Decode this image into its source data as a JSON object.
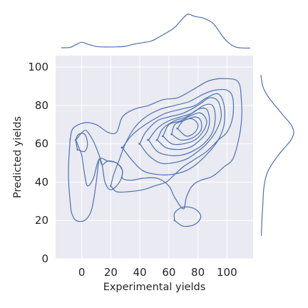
{
  "chart_data": {
    "type": "contour",
    "subtype": "joint-kde",
    "xlabel": "Experimental yields",
    "ylabel": "Predicted yields",
    "xlim": [
      -18,
      118
    ],
    "ylim": [
      0,
      106
    ],
    "xticks": [
      0,
      20,
      40,
      60,
      80,
      100
    ],
    "yticks": [
      0,
      20,
      40,
      60,
      80,
      100
    ],
    "grid": true,
    "background": "#eaeaf2",
    "line_color": "#4c72b0",
    "contours": [
      [
        [
          -8,
          62
        ],
        [
          -6,
          68
        ],
        [
          2,
          71
        ],
        [
          10,
          70
        ],
        [
          18,
          66
        ],
        [
          24,
          66
        ],
        [
          28,
          74
        ],
        [
          36,
          78
        ],
        [
          46,
          80
        ],
        [
          56,
          83
        ],
        [
          66,
          84
        ],
        [
          76,
          88
        ],
        [
          88,
          93
        ],
        [
          100,
          94
        ],
        [
          108,
          92
        ],
        [
          110,
          82
        ],
        [
          110,
          72
        ],
        [
          108,
          62
        ],
        [
          104,
          52
        ],
        [
          98,
          48
        ],
        [
          90,
          43
        ],
        [
          82,
          41
        ],
        [
          76,
          38
        ],
        [
          72,
          32
        ],
        [
          70,
          26
        ],
        [
          64,
          32
        ],
        [
          60,
          38
        ],
        [
          52,
          42
        ],
        [
          42,
          42
        ],
        [
          34,
          41
        ],
        [
          28,
          42
        ],
        [
          28,
          46
        ],
        [
          24,
          50
        ],
        [
          18,
          51
        ],
        [
          14,
          49
        ],
        [
          12,
          52
        ],
        [
          10,
          40
        ],
        [
          8,
          30
        ],
        [
          6,
          24
        ],
        [
          2,
          20
        ],
        [
          -4,
          20
        ],
        [
          -7,
          24
        ],
        [
          -8,
          30
        ],
        [
          -9,
          40
        ],
        [
          -9,
          50
        ],
        [
          -8,
          62
        ]
      ],
      [
        [
          -4,
          62
        ],
        [
          -2,
          58
        ],
        [
          0,
          54
        ],
        [
          2,
          44
        ],
        [
          4,
          38
        ],
        [
          8,
          42
        ],
        [
          12,
          52
        ],
        [
          18,
          51
        ],
        [
          24,
          50
        ],
        [
          28,
          46
        ],
        [
          26,
          40
        ],
        [
          20,
          36
        ],
        [
          16,
          40
        ],
        [
          14,
          49
        ],
        [
          10,
          58
        ],
        [
          6,
          64
        ],
        [
          2,
          67
        ],
        [
          -4,
          62
        ]
      ],
      [
        [
          20,
          38
        ],
        [
          24,
          35
        ],
        [
          32,
          35
        ],
        [
          42,
          36
        ],
        [
          50,
          38
        ],
        [
          58,
          40
        ],
        [
          64,
          44
        ],
        [
          70,
          48
        ],
        [
          78,
          52
        ],
        [
          86,
          56
        ],
        [
          94,
          62
        ],
        [
          100,
          66
        ],
        [
          104,
          74
        ],
        [
          104,
          84
        ],
        [
          100,
          88
        ],
        [
          92,
          88
        ],
        [
          84,
          86
        ],
        [
          74,
          82
        ],
        [
          64,
          80
        ],
        [
          54,
          78
        ],
        [
          44,
          74
        ],
        [
          36,
          68
        ],
        [
          30,
          60
        ],
        [
          26,
          52
        ],
        [
          22,
          44
        ],
        [
          20,
          38
        ]
      ],
      [
        [
          28,
          58
        ],
        [
          34,
          52
        ],
        [
          42,
          46
        ],
        [
          52,
          44
        ],
        [
          62,
          44
        ],
        [
          72,
          46
        ],
        [
          80,
          50
        ],
        [
          88,
          56
        ],
        [
          94,
          62
        ],
        [
          98,
          70
        ],
        [
          98,
          80
        ],
        [
          94,
          86
        ],
        [
          86,
          84
        ],
        [
          78,
          80
        ],
        [
          68,
          78
        ],
        [
          58,
          76
        ],
        [
          48,
          72
        ],
        [
          40,
          68
        ],
        [
          34,
          64
        ],
        [
          28,
          58
        ]
      ],
      [
        [
          40,
          60
        ],
        [
          46,
          54
        ],
        [
          54,
          50
        ],
        [
          62,
          50
        ],
        [
          72,
          52
        ],
        [
          80,
          56
        ],
        [
          86,
          60
        ],
        [
          92,
          66
        ],
        [
          96,
          74
        ],
        [
          94,
          82
        ],
        [
          88,
          84
        ],
        [
          80,
          80
        ],
        [
          70,
          76
        ],
        [
          60,
          74
        ],
        [
          52,
          72
        ],
        [
          44,
          66
        ],
        [
          40,
          60
        ]
      ],
      [
        [
          46,
          62
        ],
        [
          52,
          56
        ],
        [
          60,
          54
        ],
        [
          68,
          54
        ],
        [
          76,
          56
        ],
        [
          84,
          60
        ],
        [
          90,
          66
        ],
        [
          92,
          74
        ],
        [
          90,
          80
        ],
        [
          84,
          80
        ],
        [
          76,
          76
        ],
        [
          68,
          74
        ],
        [
          60,
          72
        ],
        [
          52,
          68
        ],
        [
          46,
          62
        ]
      ],
      [
        [
          52,
          62
        ],
        [
          58,
          58
        ],
        [
          66,
          57
        ],
        [
          74,
          58
        ],
        [
          80,
          61
        ],
        [
          86,
          66
        ],
        [
          88,
          72
        ],
        [
          86,
          78
        ],
        [
          80,
          78
        ],
        [
          72,
          74
        ],
        [
          64,
          72
        ],
        [
          56,
          68
        ],
        [
          52,
          62
        ]
      ],
      [
        [
          56,
          64
        ],
        [
          62,
          60
        ],
        [
          70,
          60
        ],
        [
          78,
          62
        ],
        [
          84,
          67
        ],
        [
          86,
          72
        ],
        [
          82,
          76
        ],
        [
          76,
          75
        ],
        [
          68,
          72
        ],
        [
          60,
          70
        ],
        [
          56,
          64
        ]
      ],
      [
        [
          62,
          65
        ],
        [
          68,
          62
        ],
        [
          76,
          63
        ],
        [
          82,
          67
        ],
        [
          82,
          72
        ],
        [
          78,
          74
        ],
        [
          70,
          72
        ],
        [
          64,
          70
        ],
        [
          62,
          65
        ]
      ],
      [
        [
          66,
          68
        ],
        [
          72,
          64
        ],
        [
          78,
          66
        ],
        [
          80,
          70
        ],
        [
          76,
          73
        ],
        [
          70,
          72
        ],
        [
          66,
          68
        ]
      ],
      [
        [
          -3,
          57
        ],
        [
          -4,
          62
        ],
        [
          -2,
          65
        ],
        [
          2,
          65
        ],
        [
          4,
          60
        ],
        [
          2,
          56
        ],
        [
          -3,
          57
        ]
      ],
      [
        [
          64,
          20
        ],
        [
          64,
          24
        ],
        [
          70,
          27
        ],
        [
          78,
          26
        ],
        [
          82,
          22
        ],
        [
          78,
          18
        ],
        [
          70,
          17
        ],
        [
          64,
          20
        ]
      ]
    ],
    "x_marginal": {
      "x": [
        -14,
        -8,
        -4,
        0,
        4,
        10,
        16,
        24,
        30,
        36,
        42,
        48,
        54,
        60,
        64,
        68,
        72,
        74,
        78,
        84,
        90,
        94,
        98,
        102,
        106,
        110,
        116
      ],
      "density": [
        0.08,
        0.1,
        0.25,
        0.38,
        0.28,
        0.15,
        0.12,
        0.13,
        0.16,
        0.28,
        0.36,
        0.45,
        0.7,
        0.98,
        1.2,
        1.55,
        1.88,
        1.92,
        1.8,
        1.7,
        1.45,
        1.05,
        0.6,
        0.3,
        0.12,
        0.07,
        0.06
      ]
    },
    "y_marginal": {
      "y": [
        12,
        20,
        28,
        36,
        42,
        46,
        50,
        54,
        58,
        62,
        66,
        70,
        74,
        78,
        82,
        86,
        90,
        94,
        96
      ],
      "density": [
        0.01,
        0.02,
        0.04,
        0.06,
        0.1,
        0.16,
        0.26,
        0.38,
        0.52,
        0.66,
        0.72,
        0.66,
        0.52,
        0.38,
        0.24,
        0.12,
        0.04,
        0.01,
        0.0
      ]
    }
  }
}
